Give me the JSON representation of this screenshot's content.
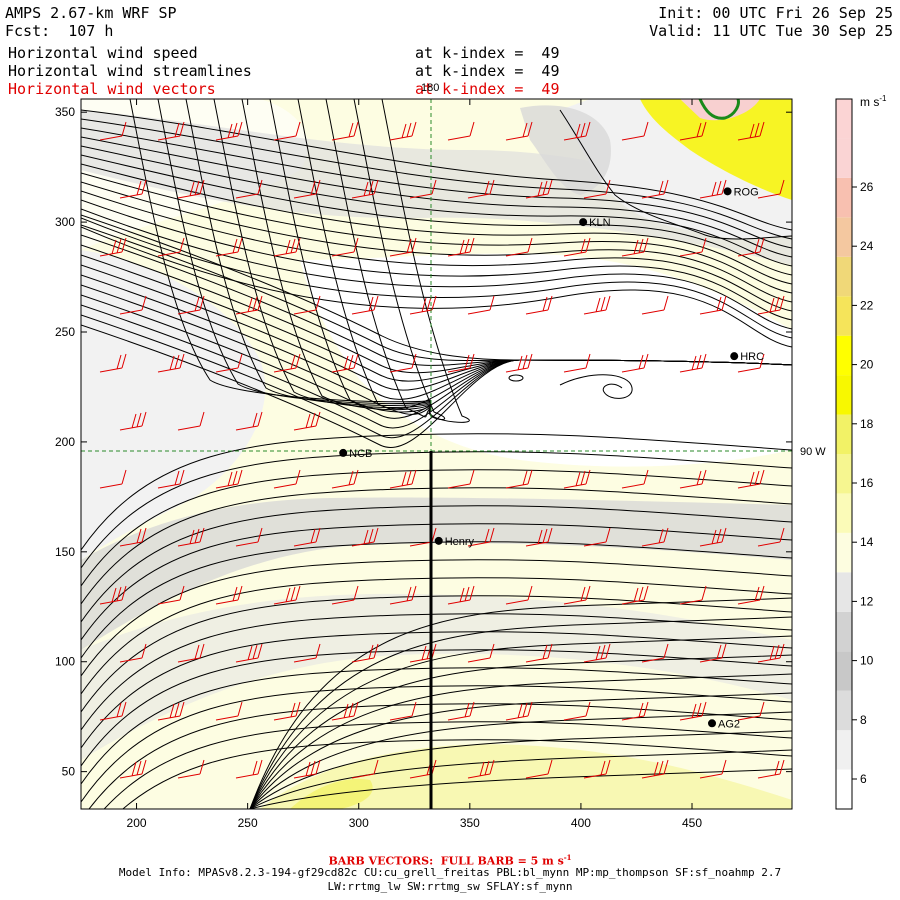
{
  "header": {
    "title": "AMPS 2.67-km WRF SP",
    "forecast": "Fcst:  107 h",
    "init": "Init: 00 UTC Fri 26 Sep 25",
    "valid": "Valid: 11 UTC Tue 30 Sep 25",
    "fields": [
      {
        "name": "Horizontal wind speed",
        "level": "at k-index =  49",
        "color": "#000000"
      },
      {
        "name": "Horizontal wind streamlines",
        "level": "at k-index =  49",
        "color": "#000000"
      },
      {
        "name": "Horizontal wind vectors",
        "level": "at k-index =  49",
        "color": "#e00000"
      }
    ]
  },
  "map": {
    "x_range": [
      175,
      495
    ],
    "y_range": [
      33,
      356
    ],
    "x_ticks": [
      "200",
      "250",
      "300",
      "350",
      "400",
      "450"
    ],
    "y_ticks": [
      "50",
      "100",
      "150",
      "200",
      "250",
      "300",
      "350"
    ],
    "meridian_label": "180",
    "parallel_label": "90 W",
    "stations": [
      {
        "id": "ROG",
        "x": 466,
        "y": 314
      },
      {
        "id": "KLN",
        "x": 401,
        "y": 300
      },
      {
        "id": "HRC",
        "x": 469,
        "y": 239
      },
      {
        "id": "NCB",
        "x": 293,
        "y": 195
      },
      {
        "id": "Henry",
        "x": 336,
        "y": 155
      },
      {
        "id": "AG2",
        "x": 459,
        "y": 72
      }
    ]
  },
  "colorbar": {
    "unit_label": "m s",
    "unit_exponent": "-1",
    "labels": [
      "6",
      "8",
      "10",
      "12",
      "14",
      "16",
      "18",
      "20",
      "22",
      "24",
      "26"
    ],
    "colors": [
      "#ffffff",
      "#f0f0f0",
      "#dcdcdc",
      "#c8c8c8",
      "#d2d2d2",
      "#e6e6e6",
      "#fdfde0",
      "#fbfbb8",
      "#f6f690",
      "#f2f266",
      "#f8f800",
      "#ffff00",
      "#f5e45a",
      "#f0d878",
      "#f4c8a0",
      "#f8c0b0",
      "#fad4d4",
      "#fbd4d4"
    ]
  },
  "footer": {
    "barb": "BARB VECTORS:  FULL BARB = 5 m s",
    "barb_exp": "-1",
    "model_info": "Model Info: MPASv8.2.3-194-gf29cd82c CU:cu_grell_freitas PBL:bl_mynn MP:mp_thompson SF:sf_noahmp 2.7",
    "physics": "LW:rrtmg_lw SW:rrtmg_sw SFLAY:sf_mynn"
  }
}
